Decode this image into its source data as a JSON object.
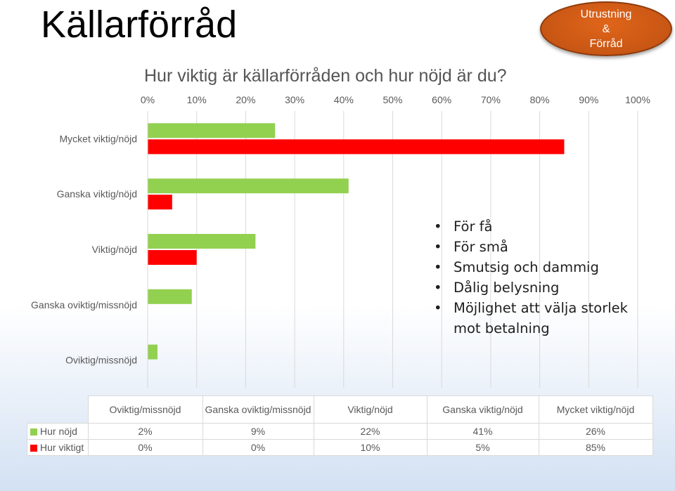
{
  "header": {
    "title": "Källarförråd",
    "badge_line1": "Utrustning",
    "badge_line2": "&",
    "badge_line3": "Förråd"
  },
  "chart_data": {
    "type": "bar",
    "orientation": "horizontal",
    "title": "Hur viktig är källarförråden och hur nöjd är du?",
    "x_ticks": [
      "0%",
      "10%",
      "20%",
      "30%",
      "40%",
      "50%",
      "60%",
      "70%",
      "80%",
      "90%",
      "100%"
    ],
    "xlim": [
      0,
      100
    ],
    "grid": true,
    "categories": [
      "Oviktig/missnöjd",
      "Ganska oviktig/missnöjd",
      "Viktig/nöjd",
      "Ganska viktig/nöjd",
      "Mycket viktig/nöjd"
    ],
    "series": [
      {
        "name": "Hur nöjd",
        "color": "#92d050",
        "values": [
          2,
          9,
          22,
          41,
          26
        ],
        "labels": [
          "2%",
          "9%",
          "22%",
          "41%",
          "26%"
        ]
      },
      {
        "name": "Hur viktigt",
        "color": "#ff0000",
        "values": [
          0,
          0,
          10,
          5,
          85
        ],
        "labels": [
          "0%",
          "0%",
          "10%",
          "5%",
          "85%"
        ]
      }
    ],
    "table_headers": [
      "Oviktig/missnöjd",
      "Ganska oviktig/missnöjd",
      "Viktig/nöjd",
      "Ganska viktig/nöjd",
      "Mycket viktig/nöjd"
    ],
    "legend_placement": "data-table"
  },
  "comments": [
    "För få",
    "För små",
    "Smutsig och dammig",
    "Dålig belysning",
    "Möjlighet att välja storlek mot betalning"
  ]
}
